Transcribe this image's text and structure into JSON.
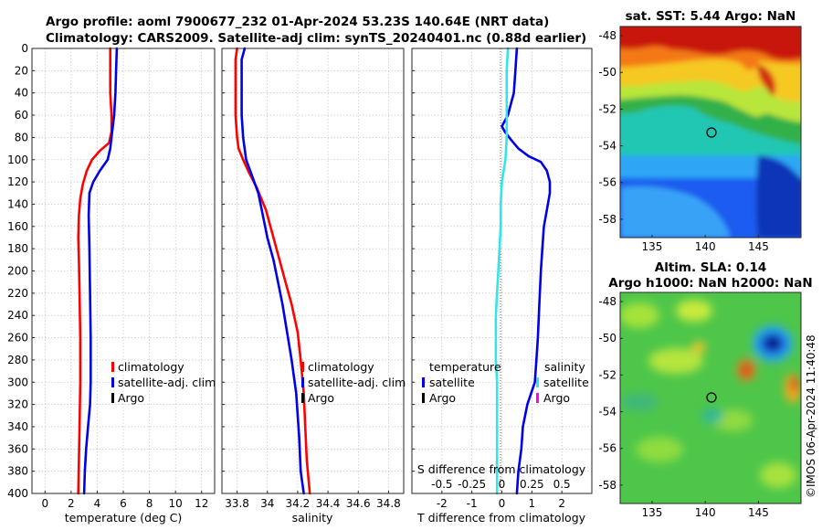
{
  "figure": {
    "title_line1": "Argo profile: aoml 7900677_232 01-Apr-2024 53.23S 140.64E (NRT data)",
    "title_line2": "Climatology: CARS2009. Satellite-adj clim: synTS_20240401.nc (0.88d earlier)",
    "watermark": "©IMOS 06-Apr-2024 11:40:48"
  },
  "colors": {
    "climatology": "#ff0000",
    "satellite": "#0000e6",
    "argo": "#000000",
    "salinity_diff": "#33e6e6",
    "argo_salinity": "#ff00ff"
  },
  "chart_data": [
    {
      "type": "line",
      "id": "temperature",
      "xlabel": "temperature (deg C)",
      "ylabel": "",
      "xlim": [
        -1,
        13
      ],
      "ylim": [
        0,
        400
      ],
      "y_reversed": true,
      "grid": true,
      "xticks": [
        0,
        2,
        4,
        6,
        8,
        10,
        12
      ],
      "yticks": [
        0,
        20,
        40,
        60,
        80,
        100,
        120,
        140,
        160,
        180,
        200,
        220,
        240,
        260,
        280,
        300,
        320,
        340,
        360,
        380,
        400
      ],
      "legend_position": "lower-right",
      "legend": [
        "climatology",
        "satellite-adj. clim",
        "Argo"
      ],
      "series": [
        {
          "name": "climatology",
          "color_key": "climatology",
          "points": [
            [
              5.0,
              0
            ],
            [
              5.0,
              20
            ],
            [
              5.0,
              40
            ],
            [
              5.1,
              60
            ],
            [
              5.1,
              75
            ],
            [
              4.9,
              85
            ],
            [
              4.2,
              92
            ],
            [
              3.6,
              100
            ],
            [
              3.2,
              110
            ],
            [
              2.9,
              122
            ],
            [
              2.7,
              135
            ],
            [
              2.6,
              150
            ],
            [
              2.55,
              170
            ],
            [
              2.6,
              190
            ],
            [
              2.65,
              220
            ],
            [
              2.7,
              260
            ],
            [
              2.7,
              300
            ],
            [
              2.65,
              340
            ],
            [
              2.6,
              370
            ],
            [
              2.55,
              400
            ]
          ]
        },
        {
          "name": "satellite-adj. clim",
          "color_key": "satellite",
          "points": [
            [
              5.5,
              0
            ],
            [
              5.45,
              20
            ],
            [
              5.4,
              40
            ],
            [
              5.3,
              60
            ],
            [
              5.1,
              80
            ],
            [
              5.0,
              90
            ],
            [
              4.8,
              100
            ],
            [
              4.2,
              110
            ],
            [
              3.7,
              120
            ],
            [
              3.4,
              130
            ],
            [
              3.35,
              150
            ],
            [
              3.4,
              180
            ],
            [
              3.45,
              220
            ],
            [
              3.5,
              260
            ],
            [
              3.5,
              300
            ],
            [
              3.45,
              320
            ],
            [
              3.3,
              340
            ],
            [
              3.15,
              360
            ],
            [
              3.05,
              380
            ],
            [
              3.0,
              400
            ]
          ]
        }
      ]
    },
    {
      "type": "line",
      "id": "salinity",
      "xlabel": "salinity",
      "ylabel": "",
      "xlim": [
        33.7,
        34.9
      ],
      "ylim": [
        0,
        400
      ],
      "y_reversed": true,
      "grid": true,
      "xticks": [
        33.8,
        34,
        34.2,
        34.4,
        34.6,
        34.8
      ],
      "xtick_labels": [
        "33.8",
        "34",
        "34.2",
        "34.4",
        "34.6",
        "34.8"
      ],
      "legend_position": "lower-right",
      "legend": [
        "climatology",
        "satellite-adj. clim",
        "Argo"
      ],
      "series": [
        {
          "name": "climatology",
          "color_key": "climatology",
          "points": [
            [
              33.8,
              0
            ],
            [
              33.79,
              10
            ],
            [
              33.79,
              30
            ],
            [
              33.79,
              60
            ],
            [
              33.8,
              80
            ],
            [
              33.81,
              90
            ],
            [
              33.84,
              100
            ],
            [
              33.88,
              112
            ],
            [
              33.93,
              125
            ],
            [
              33.99,
              145
            ],
            [
              34.04,
              170
            ],
            [
              34.08,
              190
            ],
            [
              34.12,
              210
            ],
            [
              34.16,
              230
            ],
            [
              34.2,
              255
            ],
            [
              34.22,
              280
            ],
            [
              34.24,
              310
            ],
            [
              34.25,
              340
            ],
            [
              34.26,
              370
            ],
            [
              34.28,
              400
            ]
          ]
        },
        {
          "name": "satellite-adj. clim",
          "color_key": "satellite",
          "points": [
            [
              33.85,
              0
            ],
            [
              33.83,
              10
            ],
            [
              33.83,
              30
            ],
            [
              33.83,
              60
            ],
            [
              33.84,
              80
            ],
            [
              33.86,
              100
            ],
            [
              33.9,
              115
            ],
            [
              33.94,
              130
            ],
            [
              33.97,
              150
            ],
            [
              34.0,
              170
            ],
            [
              34.04,
              190
            ],
            [
              34.07,
              210
            ],
            [
              34.1,
              230
            ],
            [
              34.13,
              255
            ],
            [
              34.16,
              280
            ],
            [
              34.19,
              310
            ],
            [
              34.21,
              350
            ],
            [
              34.22,
              380
            ],
            [
              34.24,
              400
            ]
          ]
        }
      ]
    },
    {
      "type": "line",
      "id": "difference",
      "xlabel": "T difference from climatology",
      "secondary_xlabel": "S difference from climatology",
      "ylabel": "",
      "xlim": [
        -3,
        3
      ],
      "ylim": [
        0,
        400
      ],
      "y_reversed": true,
      "grid": true,
      "xticks": [
        -2,
        -1,
        0,
        1,
        2
      ],
      "xtick_labels": [
        "-2",
        "-1",
        "0",
        "1",
        "2"
      ],
      "secondary_xticks": [
        -0.5,
        -0.25,
        0,
        0.25,
        0.5
      ],
      "secondary_xtick_labels": [
        "-0.5",
        "-0.25",
        "0",
        "0.25",
        "0.5"
      ],
      "secondary_xlim": [
        -0.75,
        0.75
      ],
      "legend_position": "lower",
      "legend_temperature_title": "temperature",
      "legend_salinity_title": "salinity",
      "legend_temperature": [
        "satellite",
        "Argo"
      ],
      "legend_salinity": [
        "satellite",
        "Argo"
      ],
      "series": [
        {
          "name": "temperature satellite",
          "color_key": "satellite",
          "points": [
            [
              0.5,
              0
            ],
            [
              0.45,
              20
            ],
            [
              0.4,
              40
            ],
            [
              0.2,
              60
            ],
            [
              0.0,
              70
            ],
            [
              0.1,
              75
            ],
            [
              0.3,
              82
            ],
            [
              0.55,
              90
            ],
            [
              0.9,
              97
            ],
            [
              1.3,
              102
            ],
            [
              1.5,
              110
            ],
            [
              1.6,
              120
            ],
            [
              1.6,
              130
            ],
            [
              1.5,
              145
            ],
            [
              1.4,
              160
            ],
            [
              1.35,
              180
            ],
            [
              1.3,
              200
            ],
            [
              1.25,
              230
            ],
            [
              1.2,
              260
            ],
            [
              1.15,
              280
            ],
            [
              1.1,
              300
            ],
            [
              0.85,
              320
            ],
            [
              0.7,
              340
            ],
            [
              0.65,
              360
            ],
            [
              0.55,
              380
            ],
            [
              0.5,
              400
            ]
          ]
        },
        {
          "name": "salinity satellite",
          "color_key": "salinity_diff",
          "points": [
            [
              0.05,
              0
            ],
            [
              0.04,
              20
            ],
            [
              0.04,
              40
            ],
            [
              0.04,
              60
            ],
            [
              0.04,
              80
            ],
            [
              0.03,
              100
            ],
            [
              0.0,
              120
            ],
            [
              -0.01,
              140
            ],
            [
              -0.01,
              160
            ],
            [
              -0.02,
              180
            ],
            [
              -0.03,
              200
            ],
            [
              -0.04,
              220
            ],
            [
              -0.05,
              240
            ],
            [
              -0.05,
              260
            ],
            [
              -0.05,
              280
            ],
            [
              -0.04,
              300
            ],
            [
              -0.04,
              330
            ],
            [
              -0.04,
              360
            ],
            [
              -0.04,
              380
            ],
            [
              -0.04,
              400
            ]
          ]
        }
      ]
    },
    {
      "type": "heatmap",
      "id": "sst",
      "title": "sat. SST: 5.44 Argo: NaN",
      "xlim": [
        132,
        149
      ],
      "ylim": [
        -59,
        -47.5
      ],
      "xticks": [
        135,
        140,
        145
      ],
      "yticks": [
        -48,
        -50,
        -52,
        -54,
        -56,
        -58
      ],
      "marker_lon": 140.64,
      "marker_lat": -53.23
    },
    {
      "type": "heatmap",
      "id": "sla",
      "title_line1": "Altim. SLA: 0.14",
      "title_line2": "Argo h1000: NaN h2000: NaN",
      "xlim": [
        132,
        149
      ],
      "ylim": [
        -59,
        -47.5
      ],
      "xticks": [
        135,
        140,
        145
      ],
      "yticks": [
        -48,
        -50,
        -52,
        -54,
        -56,
        -58
      ],
      "marker_lon": 140.64,
      "marker_lat": -53.23
    }
  ]
}
